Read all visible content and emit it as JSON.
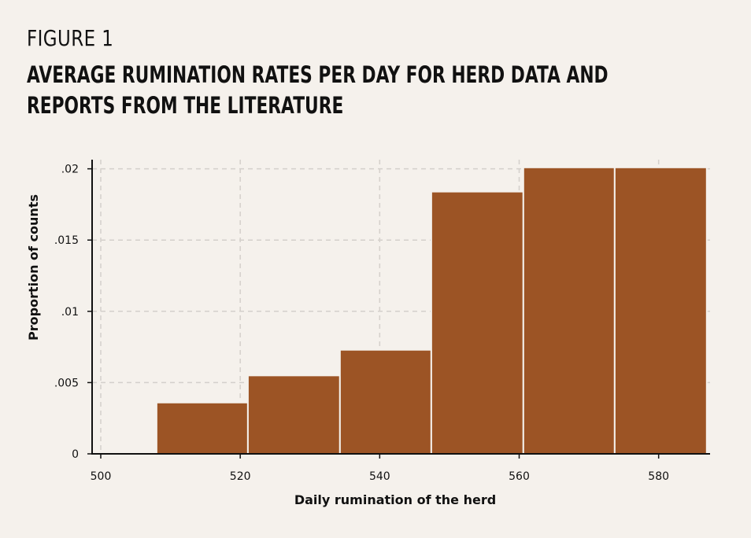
{
  "figure_label": "FIGURE 1",
  "title": "AVERAGE RUMINATION RATES PER DAY FOR HERD DATA AND REPORTS FROM THE LITERATURE",
  "colors": {
    "background": "#f5f1ec",
    "bar": "#9c5425",
    "grid": "#d4d0cb",
    "axis": "#111111"
  },
  "chart_data": {
    "type": "bar",
    "subtype": "histogram",
    "xlabel": "Daily rumination of the herd",
    "ylabel": "Proportion of counts",
    "xlim": [
      499,
      587
    ],
    "ylim": [
      0,
      0.0202
    ],
    "x_ticks": [
      500,
      520,
      540,
      560,
      580
    ],
    "x_tick_labels": [
      "500",
      "520",
      "540",
      "560",
      "580"
    ],
    "y_ticks": [
      0,
      0.005,
      0.01,
      0.015,
      0.02
    ],
    "y_tick_labels": [
      "0",
      ".005",
      ".01",
      ".015",
      ".02"
    ],
    "grid": true,
    "bins": [
      {
        "x0": 508,
        "x1": 521.1,
        "value": 0.0036
      },
      {
        "x0": 521.1,
        "x1": 534.3,
        "value": 0.0055
      },
      {
        "x0": 534.3,
        "x1": 547.4,
        "value": 0.0073
      },
      {
        "x0": 547.4,
        "x1": 560.6,
        "value": 0.0184
      },
      {
        "x0": 560.6,
        "x1": 573.7,
        "value": 0.0201
      },
      {
        "x0": 573.7,
        "x1": 586.9,
        "value": 0.0201
      }
    ]
  }
}
